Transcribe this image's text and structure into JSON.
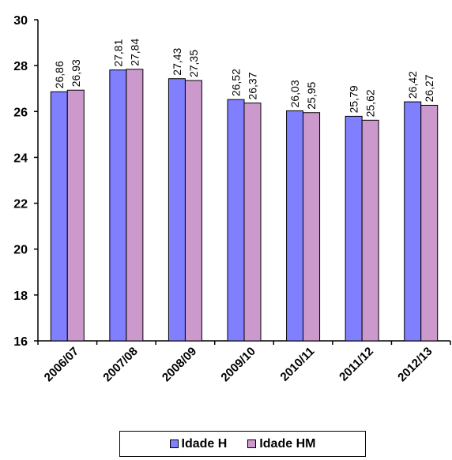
{
  "chart_data": {
    "type": "bar",
    "categories": [
      "2006/07",
      "2007/08",
      "2008/09",
      "2009/10",
      "2010/11",
      "2011/12",
      "2012/13"
    ],
    "series": [
      {
        "name": "Idade H",
        "color": "#8080ff",
        "values": [
          26.86,
          27.81,
          27.43,
          26.52,
          26.03,
          25.79,
          26.42
        ],
        "labels": [
          "26,86",
          "27,81",
          "27,43",
          "26,52",
          "26,03",
          "25,79",
          "26,42"
        ]
      },
      {
        "name": "Idade HM",
        "color": "#cc99cc",
        "values": [
          26.93,
          27.84,
          27.35,
          26.37,
          25.95,
          25.62,
          26.27
        ],
        "labels": [
          "26,93",
          "27,84",
          "27,35",
          "26,37",
          "25,95",
          "25,62",
          "26,27"
        ]
      }
    ],
    "ylim": [
      16,
      30
    ],
    "yticks": [
      16,
      18,
      20,
      22,
      24,
      26,
      28,
      30
    ],
    "grid": false,
    "legend_position": "bottom"
  }
}
